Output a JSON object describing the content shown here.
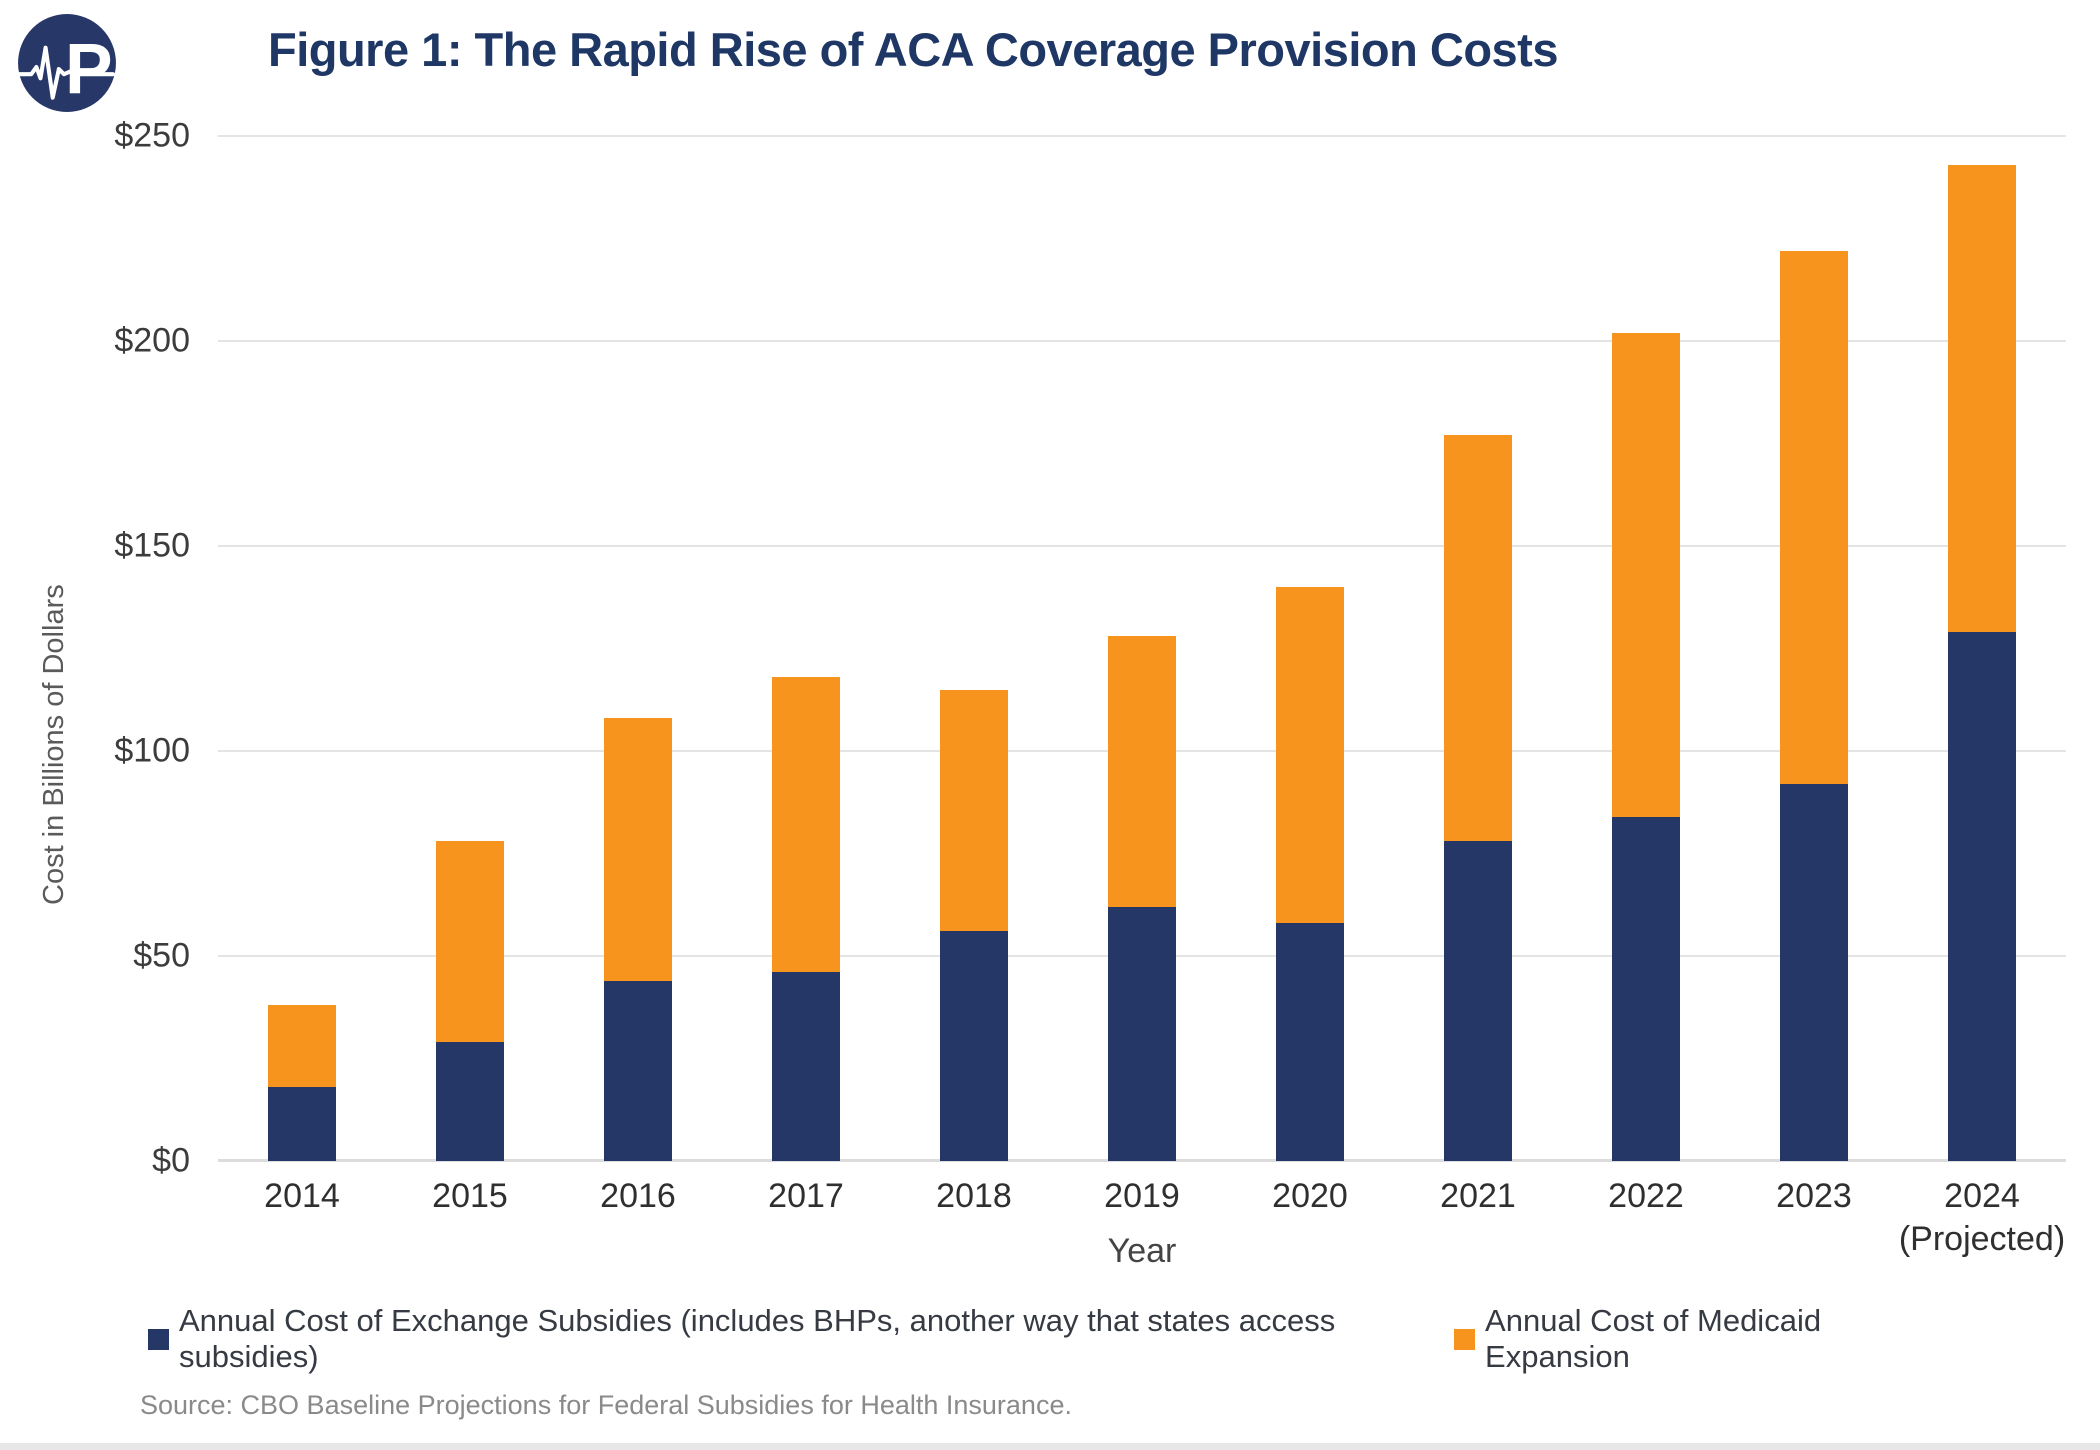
{
  "header": {
    "title": "Figure 1: The Rapid Rise of ACA Coverage Provision Costs",
    "logo": "paragon-health-institute-logo",
    "logo_color": "#273768"
  },
  "chart_data": {
    "type": "bar",
    "stacked": true,
    "title": "Figure 1: The Rapid Rise of ACA Coverage Provision Costs",
    "categories": [
      {
        "label": "2014",
        "sublabel": ""
      },
      {
        "label": "2015",
        "sublabel": ""
      },
      {
        "label": "2016",
        "sublabel": ""
      },
      {
        "label": "2017",
        "sublabel": ""
      },
      {
        "label": "2018",
        "sublabel": ""
      },
      {
        "label": "2019",
        "sublabel": ""
      },
      {
        "label": "2020",
        "sublabel": ""
      },
      {
        "label": "2021",
        "sublabel": ""
      },
      {
        "label": "2022",
        "sublabel": ""
      },
      {
        "label": "2023",
        "sublabel": ""
      },
      {
        "label": "2024",
        "sublabel": "(Projected)"
      }
    ],
    "series": [
      {
        "name": "Annual Cost of Exchange Subsidies (includes BHPs, another way that states access subsidies)",
        "color": "#253767",
        "values": [
          18,
          29,
          44,
          46,
          56,
          62,
          58,
          78,
          84,
          92,
          129
        ]
      },
      {
        "name": "Annual Cost of Medicaid Expansion",
        "color": "#F7941D",
        "values": [
          20,
          49,
          64,
          72,
          59,
          66,
          82,
          99,
          118,
          130,
          114
        ]
      }
    ],
    "totals": [
      38,
      78,
      108,
      118,
      115,
      128,
      140,
      177,
      202,
      222,
      243
    ],
    "xlabel": "Year",
    "ylabel": "Cost in Billions of Dollars",
    "ylim": [
      0,
      250
    ],
    "yticks": [
      0,
      50,
      100,
      150,
      200,
      250
    ],
    "ytick_labels": [
      "$0",
      "$50",
      "$100",
      "$150",
      "$200",
      "$250"
    ],
    "grid": true,
    "legend_position": "bottom"
  },
  "footer": {
    "source": "Source: CBO Baseline Projections for Federal Subsidies for Health Insurance."
  }
}
